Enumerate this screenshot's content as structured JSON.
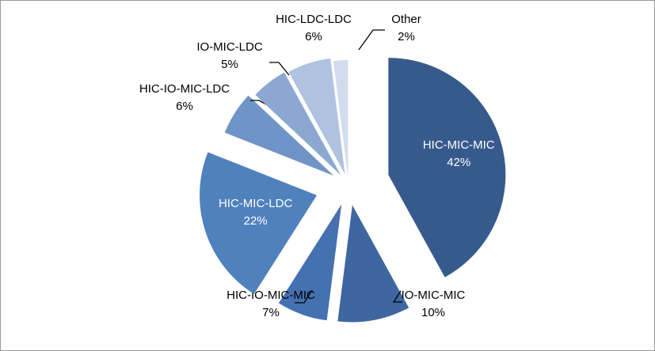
{
  "chart_data": {
    "type": "pie",
    "title": "",
    "slices": [
      {
        "name": "HIC-MIC-MIC",
        "value": 42,
        "label": "42%",
        "color": "#375a8c"
      },
      {
        "name": "IO-MIC-MIC",
        "value": 10,
        "label": "10%",
        "color": "#3e67a0"
      },
      {
        "name": "HIC-IO-MIC-MIC",
        "value": 7,
        "label": "7%",
        "color": "#4571b0"
      },
      {
        "name": "HIC-MIC-LDC",
        "value": 22,
        "label": "22%",
        "color": "#4f81bd"
      },
      {
        "name": "HIC-IO-MIC-LDC",
        "value": 6,
        "label": "6%",
        "color": "#6f94c8"
      },
      {
        "name": "IO-MIC-LDC",
        "value": 5,
        "label": "5%",
        "color": "#8ca8d2"
      },
      {
        "name": "HIC-LDC-LDC",
        "value": 6,
        "label": "6%",
        "color": "#afc2e0"
      },
      {
        "name": "Other",
        "value": 2,
        "label": "2%",
        "color": "#d3dcee"
      }
    ]
  }
}
